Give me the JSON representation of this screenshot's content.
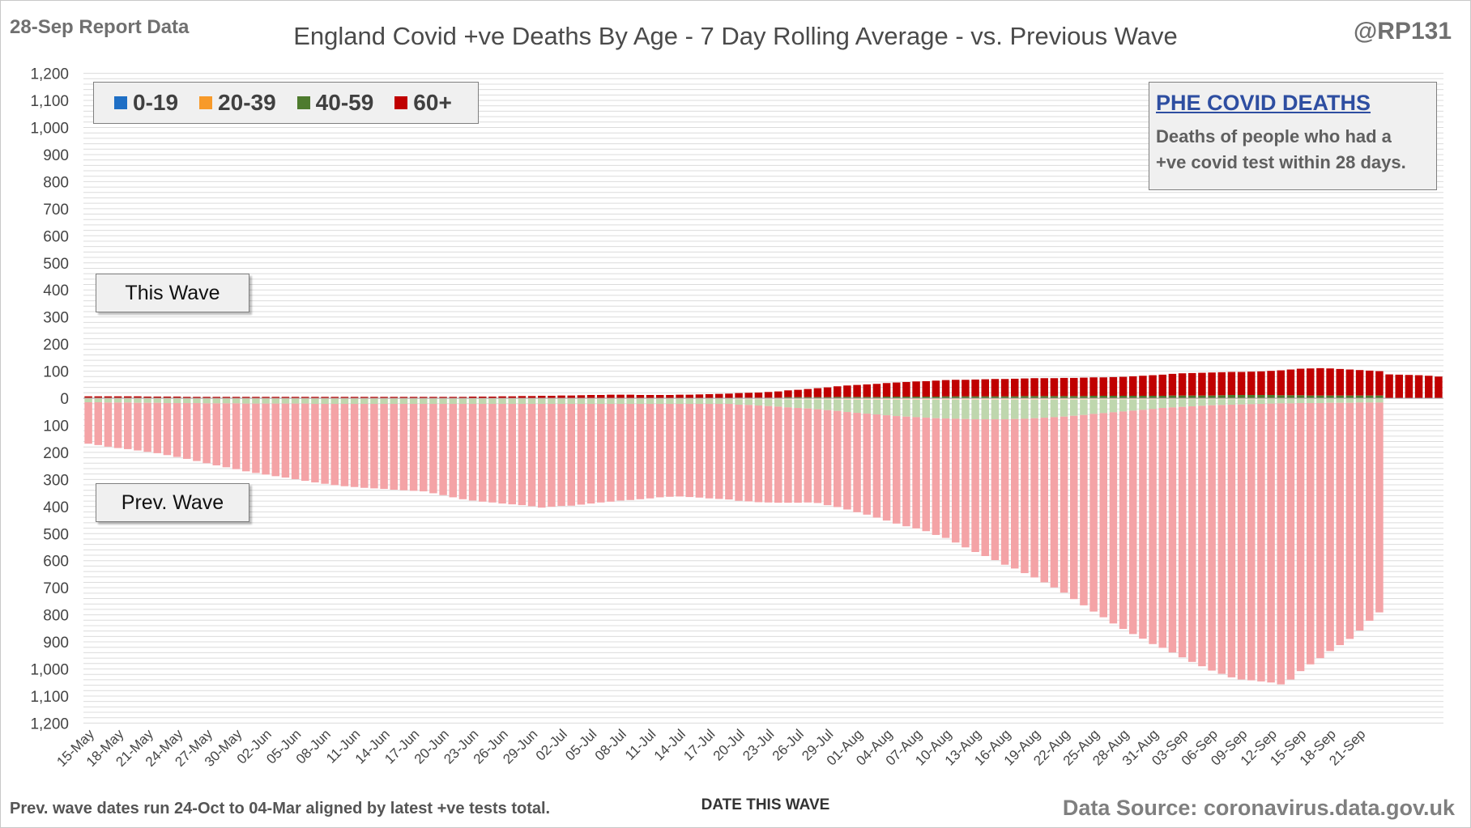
{
  "header": {
    "report_label": "28-Sep Report Data",
    "title": "England Covid +ve Deaths By Age - 7 Day Rolling Average - vs. Previous Wave",
    "handle": "@RP131"
  },
  "info_box": {
    "title": "PHE COVID DEATHS",
    "line1": "Deaths of people who had a",
    "line2": "+ve covid test within 28 days."
  },
  "wave_labels": {
    "this": "This Wave",
    "prev": "Prev. Wave"
  },
  "footer": {
    "note": "Prev. wave dates run 24-Oct to 04-Mar aligned by latest +ve tests total.",
    "xlabel": "DATE THIS WAVE",
    "source": "Data Source: coronavirus.data.gov.uk"
  },
  "colors": {
    "age_0_19": "#1f6fc5",
    "age_20_39": "#f79a2a",
    "age_40_59": "#4e7b2e",
    "age_60_plus": "#c00000",
    "prev_60_plus": "#f4a3a6",
    "prev_40_59": "#bfd7ae",
    "prev_20_39": "#fbdcc0",
    "grid": "#dcdcdc"
  },
  "chart_data": {
    "type": "bar",
    "start_date": "15-May",
    "end_date": "23-Sep",
    "ylim": [
      -1200,
      1200
    ],
    "yticks": [
      -1200,
      -1100,
      -1000,
      -900,
      -800,
      -700,
      -600,
      -500,
      -400,
      -300,
      -200,
      -100,
      0,
      100,
      200,
      300,
      400,
      500,
      600,
      700,
      800,
      900,
      1000,
      1100,
      1200
    ],
    "ytick_labels": [
      "1,200",
      "1,100",
      "1,000",
      "900",
      "800",
      "700",
      "600",
      "500",
      "400",
      "300",
      "200",
      "100",
      "0",
      "100",
      "200",
      "300",
      "400",
      "500",
      "600",
      "700",
      "800",
      "900",
      "1,000",
      "1,100",
      "1,200"
    ],
    "xtick_labels": [
      "15-May",
      "18-May",
      "21-May",
      "24-May",
      "27-May",
      "30-May",
      "02-Jun",
      "05-Jun",
      "08-Jun",
      "11-Jun",
      "14-Jun",
      "17-Jun",
      "20-Jun",
      "23-Jun",
      "26-Jun",
      "29-Jun",
      "02-Jul",
      "05-Jul",
      "08-Jul",
      "11-Jul",
      "14-Jul",
      "17-Jul",
      "20-Jul",
      "23-Jul",
      "26-Jul",
      "29-Jul",
      "01-Aug",
      "04-Aug",
      "07-Aug",
      "10-Aug",
      "13-Aug",
      "16-Aug",
      "19-Aug",
      "22-Aug",
      "25-Aug",
      "28-Aug",
      "31-Aug",
      "03-Sep",
      "06-Sep",
      "09-Sep",
      "12-Sep",
      "15-Sep",
      "18-Sep",
      "21-Sep"
    ],
    "xlabel": "DATE THIS WAVE",
    "legend": {
      "position": "top-left",
      "entries": [
        "0-19",
        "20-39",
        "40-59",
        "60+"
      ]
    },
    "this_wave": {
      "age_0_19": [
        0,
        0,
        0,
        0,
        0,
        0,
        0,
        0,
        0,
        0,
        0,
        0,
        0,
        0,
        0,
        0,
        0,
        0,
        0,
        0,
        0,
        0,
        0,
        0,
        0,
        0,
        0,
        0,
        0,
        0,
        0,
        0,
        0,
        0,
        0,
        0,
        0,
        0,
        0,
        0,
        0,
        0,
        0,
        0,
        0,
        0,
        0,
        0,
        0,
        0,
        0,
        0,
        0,
        0,
        0,
        0,
        0,
        0,
        0,
        0,
        0,
        0,
        0,
        0,
        0,
        0,
        0,
        0,
        0,
        0,
        0,
        0,
        0,
        0,
        0,
        0,
        0,
        0,
        0,
        0,
        0,
        0,
        0,
        0,
        0,
        0,
        0,
        0,
        0,
        0,
        0,
        0,
        0,
        0,
        0,
        0,
        0,
        0,
        0,
        0,
        0,
        0,
        0,
        0,
        0,
        0,
        0,
        0,
        0,
        0,
        0,
        0,
        0,
        0,
        0,
        0,
        0,
        0,
        0,
        0,
        0,
        0,
        0,
        0,
        0,
        0,
        0,
        0,
        0,
        0,
        0,
        0
      ],
      "age_20_39": [
        1,
        1,
        1,
        1,
        1,
        1,
        1,
        1,
        1,
        1,
        0,
        0,
        0,
        0,
        0,
        0,
        0,
        0,
        0,
        0,
        0,
        0,
        0,
        0,
        0,
        0,
        0,
        0,
        0,
        0,
        0,
        0,
        0,
        0,
        0,
        0,
        0,
        0,
        0,
        0,
        0,
        0,
        0,
        0,
        0,
        0,
        0,
        0,
        0,
        0,
        0,
        0,
        0,
        0,
        0,
        0,
        0,
        0,
        0,
        0,
        0,
        0,
        0,
        0,
        0,
        0,
        0,
        0,
        0,
        0,
        0,
        1,
        1,
        1,
        1,
        1,
        1,
        1,
        1,
        1,
        1,
        1,
        1,
        1,
        1,
        1,
        1,
        1,
        1,
        1,
        1,
        1,
        1,
        1,
        1,
        1,
        1,
        1,
        1,
        1,
        1,
        1,
        1,
        1,
        1,
        1,
        1,
        1,
        1,
        1,
        1,
        1,
        1,
        1,
        1,
        1,
        1,
        1,
        1,
        1,
        1,
        1,
        1,
        1,
        1,
        1,
        1,
        1,
        1,
        1,
        1,
        1
      ],
      "age_40_59": [
        1,
        1,
        1,
        1,
        1,
        1,
        1,
        1,
        1,
        1,
        1,
        1,
        1,
        1,
        1,
        1,
        1,
        1,
        1,
        1,
        1,
        1,
        1,
        1,
        1,
        1,
        1,
        1,
        1,
        1,
        1,
        1,
        1,
        1,
        1,
        1,
        1,
        1,
        1,
        1,
        1,
        1,
        1,
        1,
        1,
        1,
        1,
        1,
        1,
        1,
        1,
        1,
        1,
        1,
        1,
        1,
        1,
        1,
        1,
        1,
        1,
        1,
        1,
        1,
        1,
        1,
        2,
        2,
        2,
        2,
        2,
        3,
        3,
        3,
        3,
        3,
        4,
        4,
        4,
        4,
        4,
        5,
        5,
        5,
        5,
        5,
        5,
        6,
        6,
        6,
        6,
        6,
        6,
        6,
        6,
        7,
        7,
        7,
        7,
        7,
        7,
        7,
        8,
        8,
        8,
        8,
        8,
        8,
        8,
        8,
        9,
        9,
        9,
        9,
        9,
        10,
        11,
        11,
        11,
        11,
        11,
        10,
        10,
        10,
        9,
        9,
        9,
        9,
        9,
        9,
        9,
        9
      ],
      "age_60_plus": [
        5,
        5,
        5,
        5,
        5,
        5,
        4,
        4,
        4,
        4,
        4,
        4,
        4,
        4,
        4,
        4,
        4,
        4,
        4,
        4,
        4,
        4,
        4,
        4,
        4,
        4,
        4,
        4,
        4,
        4,
        4,
        4,
        4,
        4,
        4,
        4,
        4,
        4,
        4,
        5,
        5,
        5,
        6,
        6,
        7,
        7,
        8,
        8,
        9,
        9,
        10,
        11,
        11,
        12,
        12,
        12,
        11,
        11,
        11,
        11,
        12,
        12,
        13,
        14,
        15,
        16,
        17,
        18,
        19,
        21,
        23,
        25,
        27,
        30,
        33,
        36,
        39,
        42,
        44,
        46,
        48,
        50,
        52,
        54,
        56,
        57,
        59,
        60,
        61,
        61,
        62,
        63,
        64,
        64,
        65,
        65,
        66,
        66,
        66,
        67,
        67,
        68,
        68,
        68,
        69,
        70,
        72,
        74,
        76,
        78,
        80,
        82,
        83,
        84,
        85,
        85,
        85,
        85,
        86,
        87,
        89,
        92,
        95,
        98,
        100,
        101,
        100,
        98,
        96,
        94,
        92,
        90,
        88,
        87,
        86,
        85,
        83,
        80
      ]
    },
    "prev_wave": {
      "age_20_39": [
        3,
        3,
        3,
        3,
        3,
        3,
        3,
        3,
        3,
        3,
        3,
        3,
        3,
        3,
        3,
        3,
        3,
        3,
        3,
        3,
        3,
        3,
        3,
        3,
        3,
        3,
        3,
        3,
        3,
        3,
        3,
        3,
        3,
        3,
        3,
        3,
        3,
        3,
        3,
        3,
        3,
        3,
        3,
        3,
        3,
        3,
        3,
        3,
        3,
        3,
        3,
        3,
        3,
        3,
        3,
        3,
        3,
        3,
        3,
        3,
        3,
        3,
        3,
        3,
        3,
        3,
        4,
        4,
        4,
        4,
        4,
        5,
        5,
        5,
        5,
        5,
        5,
        6,
        6,
        6,
        6,
        6,
        6,
        6,
        6,
        6,
        6,
        6,
        6,
        6,
        6,
        6,
        6,
        6,
        6,
        6,
        6,
        6,
        6,
        6,
        6,
        6,
        5,
        5,
        5,
        5,
        5,
        5,
        5,
        4,
        4,
        4,
        4,
        4,
        4,
        4,
        4,
        4,
        4,
        4,
        3,
        3,
        3,
        3,
        3,
        3,
        3,
        3,
        3,
        3,
        3,
        3
      ],
      "age_40_59": [
        12,
        12,
        13,
        13,
        13,
        14,
        14,
        14,
        15,
        15,
        15,
        15,
        16,
        16,
        16,
        16,
        17,
        17,
        17,
        17,
        17,
        17,
        17,
        18,
        18,
        18,
        18,
        18,
        18,
        18,
        18,
        18,
        18,
        18,
        18,
        18,
        18,
        18,
        18,
        18,
        18,
        18,
        18,
        18,
        18,
        18,
        18,
        18,
        18,
        18,
        18,
        18,
        18,
        18,
        18,
        18,
        18,
        18,
        18,
        18,
        18,
        18,
        18,
        18,
        18,
        18,
        20,
        21,
        23,
        25,
        27,
        29,
        31,
        33,
        36,
        39,
        42,
        45,
        48,
        51,
        54,
        57,
        60,
        62,
        64,
        66,
        68,
        69,
        70,
        71,
        72,
        72,
        72,
        72,
        71,
        70,
        68,
        66,
        64,
        62,
        59,
        56,
        53,
        50,
        47,
        44,
        41,
        38,
        35,
        32,
        30,
        28,
        26,
        24,
        22,
        21,
        20,
        19,
        18,
        17,
        17,
        16,
        16,
        15,
        15,
        15,
        14,
        14,
        14,
        13,
        13,
        13
      ],
      "age_60_plus": [
        153,
        158,
        163,
        168,
        172,
        176,
        181,
        186,
        192,
        199,
        206,
        214,
        221,
        229,
        236,
        243,
        250,
        256,
        262,
        268,
        273,
        279,
        285,
        290,
        295,
        300,
        304,
        307,
        310,
        312,
        314,
        317,
        319,
        321,
        323,
        330,
        337,
        345,
        352,
        357,
        361,
        364,
        368,
        371,
        374,
        378,
        383,
        380,
        377,
        376,
        372,
        368,
        364,
        361,
        357,
        355,
        352,
        349,
        345,
        343,
        342,
        344,
        346,
        349,
        351,
        353,
        355,
        356,
        357,
        356,
        355,
        352,
        350,
        347,
        346,
        351,
        355,
        360,
        367,
        373,
        381,
        389,
        397,
        405,
        411,
        419,
        431,
        441,
        457,
        474,
        490,
        505,
        520,
        537,
        552,
        570,
        588,
        608,
        629,
        650,
        677,
        703,
        730,
        754,
        780,
        803,
        825,
        845,
        868,
        886,
        905,
        925,
        944,
        962,
        980,
        993,
        1007,
        1016,
        1020,
        1025,
        1030,
        1038,
        1020,
        990,
        965,
        942,
        917,
        895,
        872,
        842,
        806,
        775
      ]
    }
  }
}
